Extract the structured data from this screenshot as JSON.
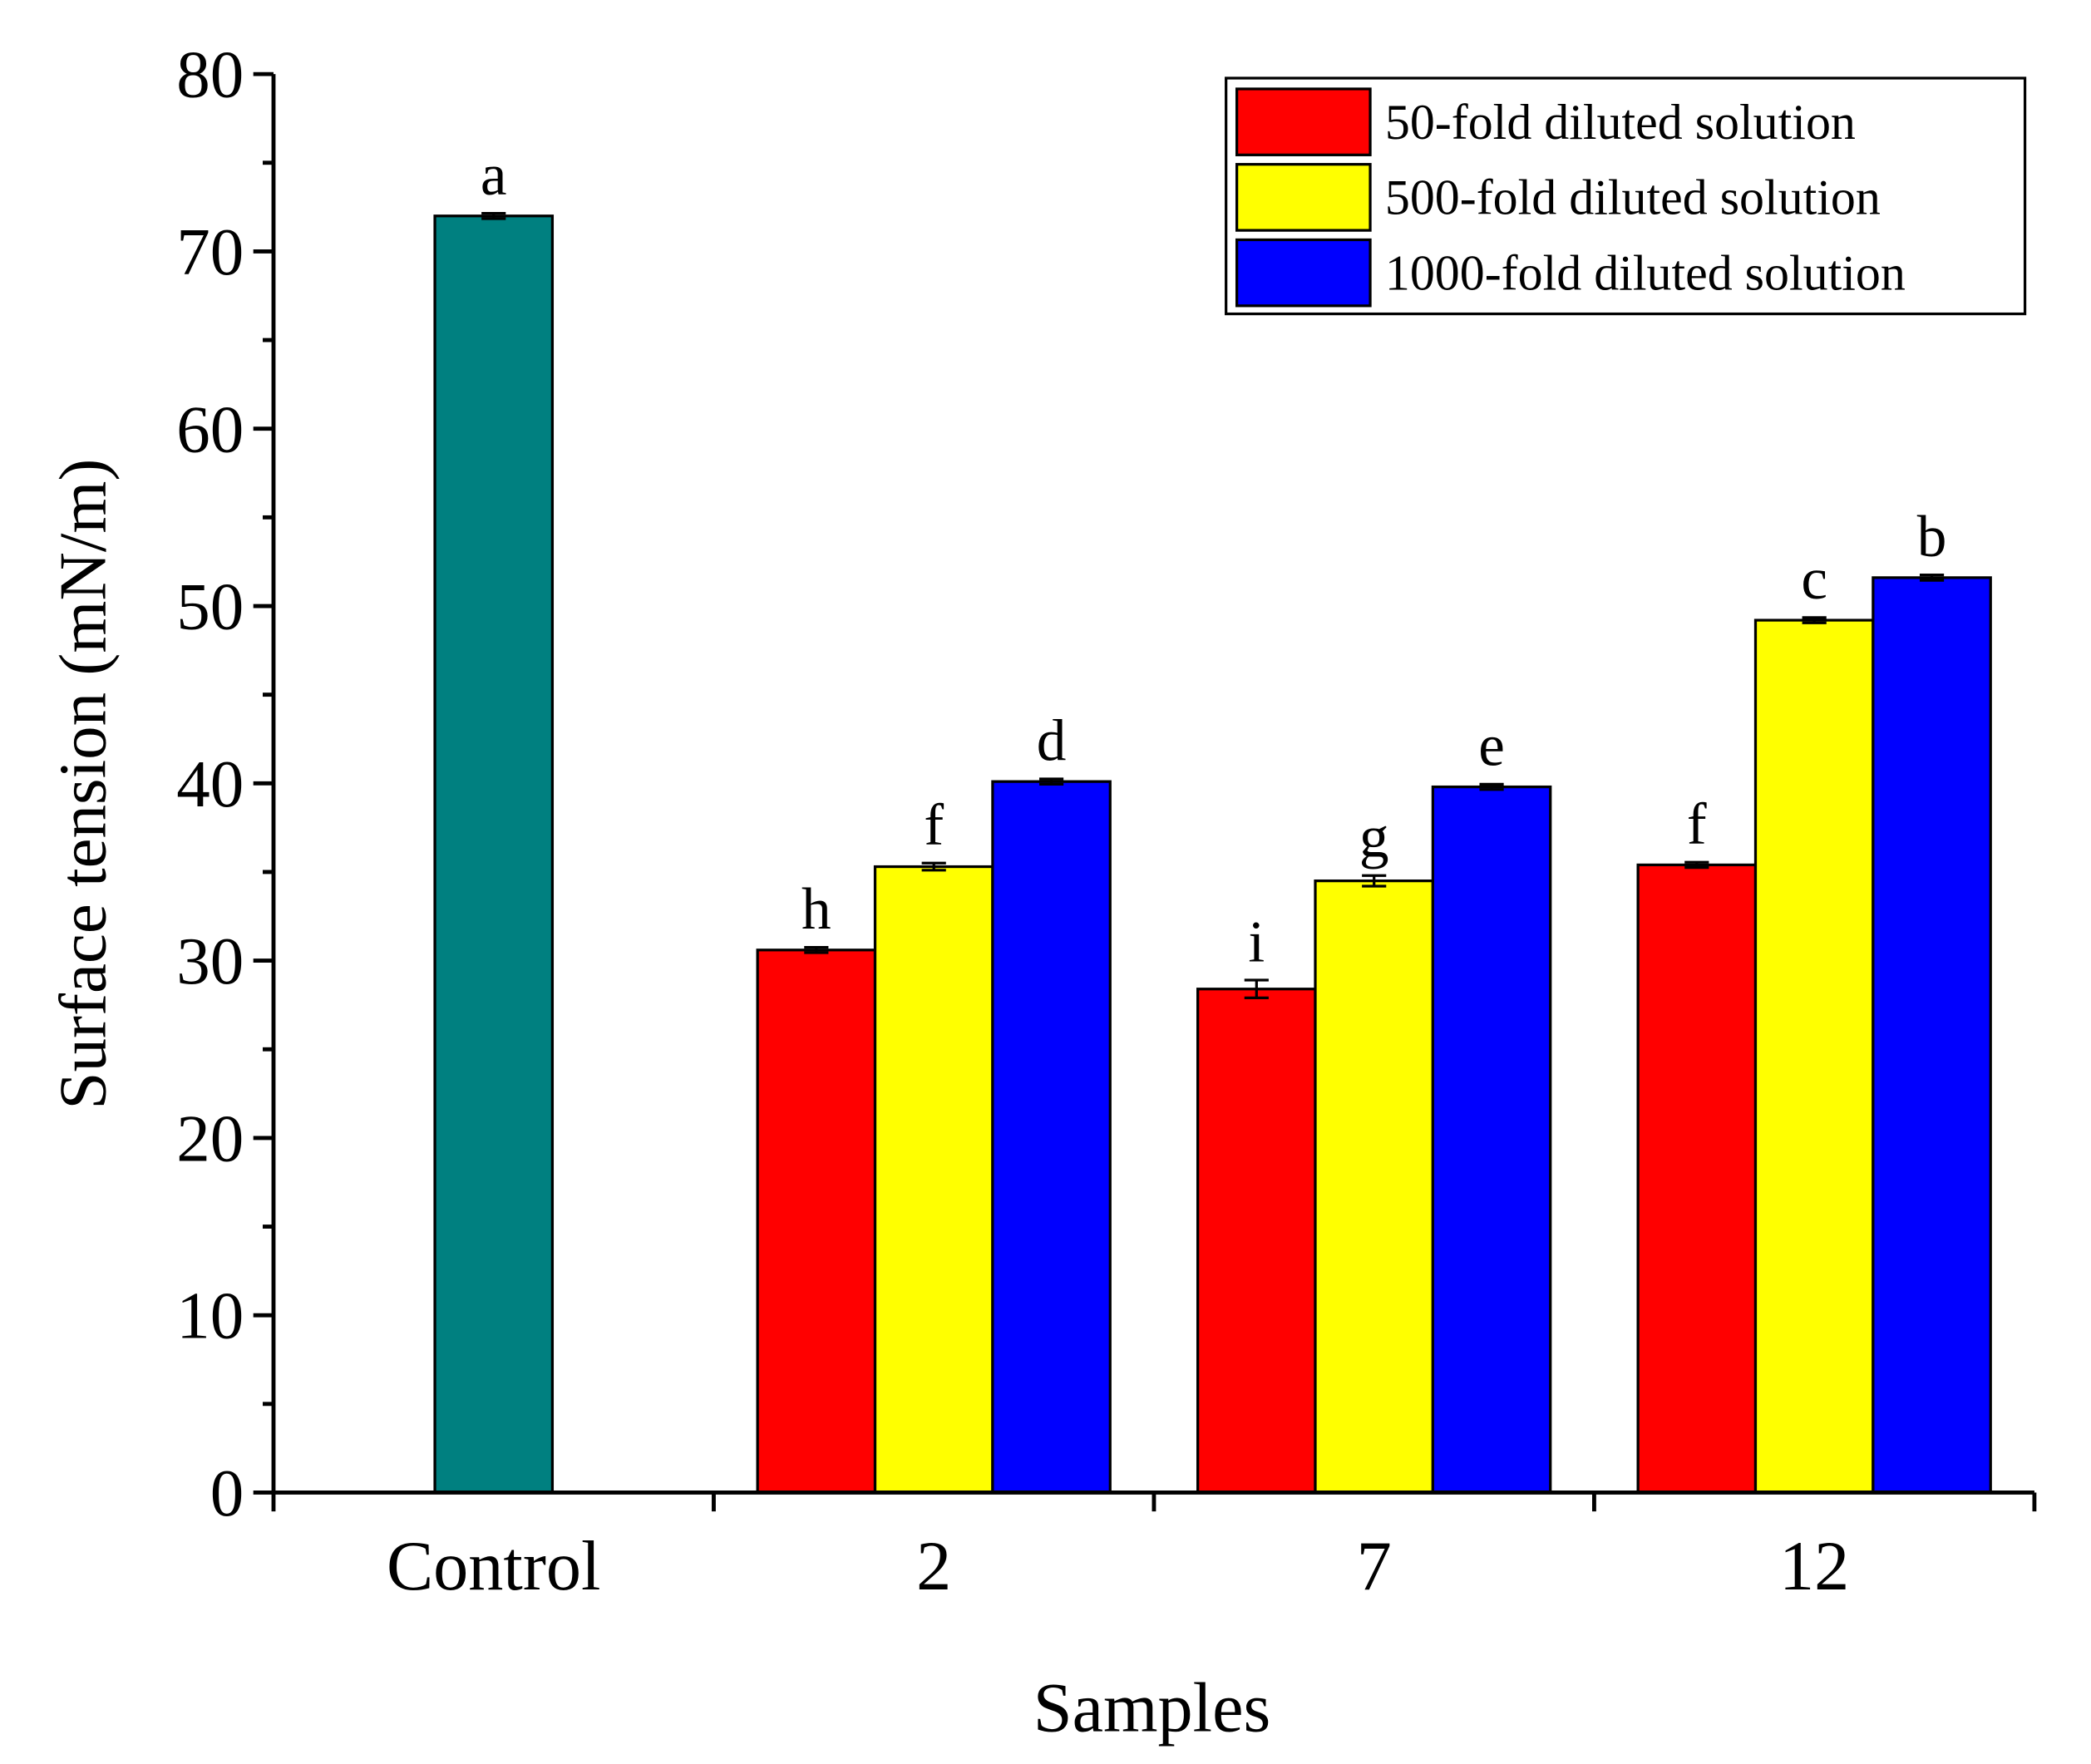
{
  "chart_data": {
    "type": "bar",
    "x_label": "Samples",
    "y_label": "Surface tension (mN/m)",
    "categories": [
      "Control",
      "2",
      "7",
      "12"
    ],
    "ylim": [
      0,
      80
    ],
    "yticks": [
      0,
      10,
      20,
      30,
      40,
      50,
      60,
      70,
      80
    ],
    "legend": "upper right",
    "series": [
      {
        "color": "#008080",
        "values": [
          72,
          null,
          null,
          null
        ],
        "errors": [
          0.15,
          null,
          null,
          null
        ],
        "letters": [
          "a",
          null,
          null,
          null
        ]
      },
      {
        "name": "50-fold diluted solution",
        "color": "#ff0000",
        "values": [
          null,
          30.6,
          28.4,
          35.4
        ],
        "errors": [
          null,
          0.15,
          0.5,
          0.15
        ],
        "letters": [
          null,
          "h",
          "i",
          "f"
        ]
      },
      {
        "name": "500-fold diluted solution",
        "color": "#ffff00",
        "values": [
          null,
          35.3,
          34.5,
          49.2
        ],
        "errors": [
          null,
          0.2,
          0.3,
          0.15
        ],
        "letters": [
          null,
          "f",
          "g",
          "c"
        ]
      },
      {
        "name": "1000-fold diluted solution",
        "color": "#0000ff",
        "values": [
          null,
          40.1,
          39.8,
          51.6
        ],
        "errors": [
          null,
          0.15,
          0.15,
          0.15
        ],
        "letters": [
          null,
          "d",
          "e",
          "b"
        ]
      }
    ]
  }
}
